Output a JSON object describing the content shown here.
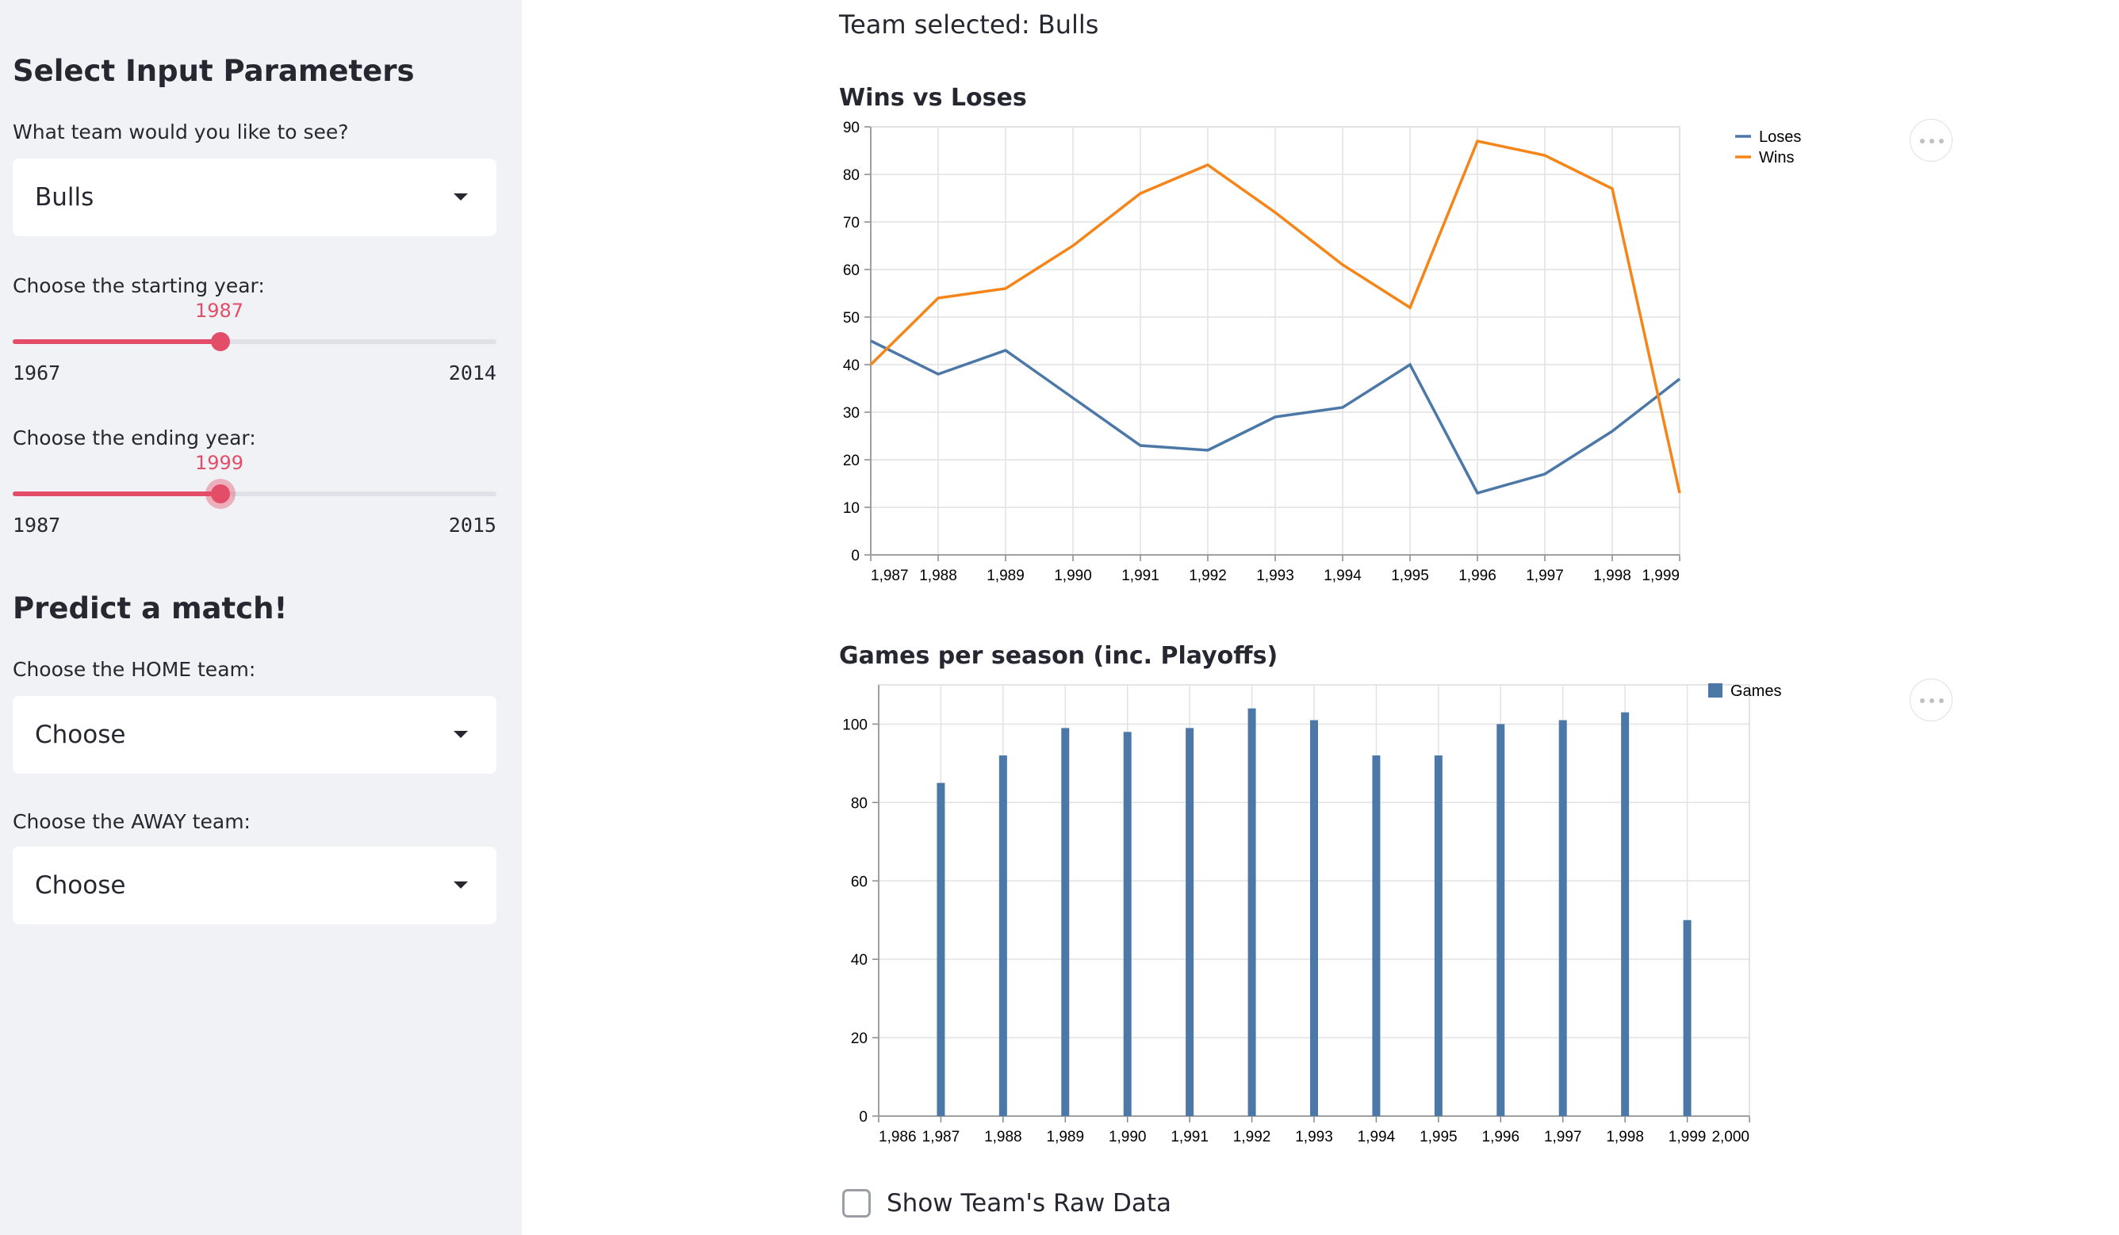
{
  "sidebar": {
    "heading": "Select Input Parameters",
    "team_question": "What team would you like to see?",
    "team_value": "Bulls",
    "start_label": "Choose the starting year:",
    "start_slider": {
      "value": "1987",
      "min": "1967",
      "max": "2014"
    },
    "end_label": "Choose the ending year:",
    "end_slider": {
      "value": "1999",
      "min": "1987",
      "max": "2015"
    },
    "predict_heading": "Predict a match!",
    "home_label": "Choose the HOME team:",
    "home_value": "Choose",
    "away_label": "Choose the AWAY team:",
    "away_value": "Choose"
  },
  "main": {
    "team_selected": "Team selected: Bulls",
    "raw_data_label": "Show Team's Raw Data"
  },
  "colors": {
    "accent": "#e44d67",
    "loses": "#4c78a8",
    "wins": "#f58518",
    "games": "#4c78a8"
  },
  "chart_data": [
    {
      "type": "line",
      "title": "Wins vs Loses",
      "x": [
        1987,
        1988,
        1989,
        1990,
        1991,
        1992,
        1993,
        1994,
        1995,
        1996,
        1997,
        1998,
        1999
      ],
      "x_tick_labels": [
        "1,987",
        "1,988",
        "1,989",
        "1,990",
        "1,991",
        "1,992",
        "1,993",
        "1,994",
        "1,995",
        "1,996",
        "1,997",
        "1,998",
        "1,999"
      ],
      "series": [
        {
          "name": "Loses",
          "color": "#4c78a8",
          "values": [
            45,
            38,
            43,
            33,
            23,
            22,
            29,
            31,
            40,
            13,
            17,
            26,
            37
          ]
        },
        {
          "name": "Wins",
          "color": "#f58518",
          "values": [
            40,
            54,
            56,
            65,
            76,
            82,
            72,
            61,
            52,
            87,
            84,
            77,
            13
          ]
        }
      ],
      "ylim": [
        0,
        90
      ],
      "y_ticks": [
        0,
        10,
        20,
        30,
        40,
        50,
        60,
        70,
        80,
        90
      ],
      "grid": true,
      "legend": "top-right"
    },
    {
      "type": "bar",
      "title": "Games per season (inc. Playoffs)",
      "x": [
        1987,
        1988,
        1989,
        1990,
        1991,
        1992,
        1993,
        1994,
        1995,
        1996,
        1997,
        1998,
        1999
      ],
      "series": [
        {
          "name": "Games",
          "color": "#4c78a8",
          "values": [
            85,
            92,
            99,
            98,
            99,
            104,
            101,
            92,
            92,
            100,
            101,
            103,
            50
          ]
        }
      ],
      "xlim": [
        1986,
        2000
      ],
      "x_tick_labels": [
        "1,986",
        "1,987",
        "1,988",
        "1,989",
        "1,990",
        "1,991",
        "1,992",
        "1,993",
        "1,994",
        "1,995",
        "1,996",
        "1,997",
        "1,998",
        "1,999",
        "2,000"
      ],
      "ylim": [
        0,
        110
      ],
      "y_ticks": [
        0,
        20,
        40,
        60,
        80,
        100
      ],
      "grid": true,
      "legend": "top-right"
    }
  ]
}
